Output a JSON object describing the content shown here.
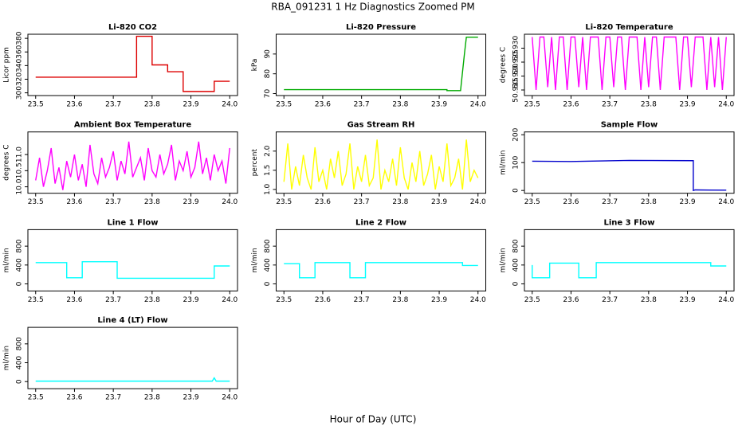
{
  "title": "RBA_091231  1 Hz Diagnostics Zoomed PM",
  "xlabel": "Hour of Day (UTC)",
  "chart_data": [
    {
      "type": "line",
      "title": "Li-820 CO2",
      "ylabel": "Licor ppm",
      "color": "#dd0000",
      "x": [
        23.5,
        23.76,
        23.76,
        23.8,
        23.8,
        23.84,
        23.84,
        23.88,
        23.88,
        23.96,
        23.96,
        24.0
      ],
      "values": [
        323,
        323,
        383,
        383,
        341,
        341,
        331,
        331,
        302,
        302,
        317,
        317
      ],
      "xlim": [
        23.48,
        24.02
      ],
      "ylim": [
        296,
        386
      ],
      "xticks": [
        23.5,
        23.6,
        23.7,
        23.8,
        23.9,
        {
          "value": 24,
          "label": "24.0"
        }
      ],
      "yticks": [
        300,
        320,
        340,
        360,
        380
      ]
    },
    {
      "type": "line",
      "title": "Li-820 Pressure",
      "ylabel": "kPa",
      "color": "#00aa00",
      "x": [
        23.5,
        23.92,
        23.92,
        23.955,
        23.965,
        23.97,
        24.0
      ],
      "values": [
        72,
        72,
        71.5,
        71.5,
        90,
        98.5,
        98.5
      ],
      "xlim": [
        23.48,
        24.02
      ],
      "ylim": [
        69,
        100
      ],
      "xticks": [
        23.5,
        23.6,
        23.7,
        23.8,
        23.9,
        {
          "value": 24,
          "label": "24.0"
        }
      ],
      "yticks": [
        70,
        80,
        90
      ]
    },
    {
      "type": "line",
      "title": "Li-820 Temperature",
      "ylabel": "degrees C",
      "color": "#ff00ff",
      "x": [
        23.5,
        23.51,
        23.52,
        23.53,
        23.54,
        23.55,
        23.56,
        23.57,
        23.58,
        23.59,
        23.6,
        23.61,
        23.62,
        23.63,
        23.64,
        23.65,
        23.66,
        23.67,
        23.68,
        23.69,
        23.7,
        23.71,
        23.72,
        23.73,
        23.74,
        23.75,
        23.76,
        23.77,
        23.78,
        23.79,
        23.8,
        23.81,
        23.82,
        23.83,
        23.84,
        23.85,
        23.86,
        23.87,
        23.88,
        23.89,
        23.9,
        23.91,
        23.92,
        23.93,
        23.94,
        23.95,
        23.96,
        23.97,
        23.98,
        23.99,
        24.0
      ],
      "values": [
        50.934,
        50.915,
        50.934,
        50.934,
        50.916,
        50.934,
        50.915,
        50.934,
        50.934,
        50.915,
        50.934,
        50.934,
        50.916,
        50.934,
        50.915,
        50.934,
        50.934,
        50.934,
        50.915,
        50.934,
        50.934,
        50.916,
        50.934,
        50.934,
        50.915,
        50.934,
        50.934,
        50.934,
        50.915,
        50.934,
        50.916,
        50.934,
        50.934,
        50.915,
        50.934,
        50.934,
        50.934,
        50.934,
        50.915,
        50.934,
        50.934,
        50.916,
        50.934,
        50.934,
        50.934,
        50.915,
        50.934,
        50.916,
        50.934,
        50.915,
        50.934
      ],
      "xlim": [
        23.48,
        24.02
      ],
      "ylim": [
        50.913,
        50.935
      ],
      "xticks": [
        23.5,
        23.6,
        23.7,
        23.8,
        23.9,
        {
          "value": 24,
          "label": "24.0"
        }
      ],
      "yticks": [
        50.915,
        {
          "value": 50.92,
          "label": "50.920"
        },
        50.925,
        {
          "value": 50.93,
          "label": "50.930"
        }
      ]
    },
    {
      "type": "line",
      "title": "Ambient Box Temperature",
      "ylabel": "degrees C",
      "color": "#ff00ff",
      "x": [
        23.5,
        23.51,
        23.52,
        23.53,
        23.54,
        23.55,
        23.56,
        23.57,
        23.58,
        23.59,
        23.6,
        23.61,
        23.62,
        23.63,
        23.64,
        23.65,
        23.66,
        23.67,
        23.68,
        23.69,
        23.7,
        23.71,
        23.72,
        23.73,
        23.74,
        23.75,
        23.76,
        23.77,
        23.78,
        23.79,
        23.8,
        23.81,
        23.82,
        23.83,
        23.84,
        23.85,
        23.86,
        23.87,
        23.88,
        23.89,
        23.9,
        23.91,
        23.92,
        23.93,
        23.94,
        23.95,
        23.96,
        23.97,
        23.98,
        23.99,
        24.0
      ],
      "values": [
        10.2,
        10.9,
        10.0,
        10.5,
        11.2,
        10.1,
        10.6,
        9.9,
        10.8,
        10.3,
        11.0,
        10.2,
        10.7,
        10.0,
        11.3,
        10.4,
        10.1,
        10.9,
        10.3,
        10.6,
        11.1,
        10.2,
        10.8,
        10.4,
        11.4,
        10.3,
        10.6,
        10.9,
        10.2,
        11.2,
        10.5,
        10.3,
        11.0,
        10.4,
        10.7,
        11.3,
        10.2,
        10.8,
        10.5,
        11.1,
        10.3,
        10.6,
        11.4,
        10.4,
        10.9,
        10.2,
        11.0,
        10.5,
        10.8,
        10.1,
        11.2
      ],
      "xlim": [
        23.48,
        24.02
      ],
      "ylim": [
        9.8,
        11.7
      ],
      "xticks": [
        23.5,
        23.6,
        23.7,
        23.8,
        23.9,
        {
          "value": 24,
          "label": "24.0"
        }
      ],
      "yticks": [
        {
          "value": 10,
          "label": "10.0"
        },
        10.5,
        {
          "value": 11,
          "label": "11.0"
        }
      ]
    },
    {
      "type": "line",
      "title": "Gas Stream RH",
      "ylabel": "percent",
      "color": "#ffff00",
      "x": [
        23.5,
        23.51,
        23.52,
        23.53,
        23.54,
        23.55,
        23.56,
        23.57,
        23.58,
        23.59,
        23.6,
        23.61,
        23.62,
        23.63,
        23.64,
        23.65,
        23.66,
        23.67,
        23.68,
        23.69,
        23.7,
        23.71,
        23.72,
        23.73,
        23.74,
        23.75,
        23.76,
        23.77,
        23.78,
        23.79,
        23.8,
        23.81,
        23.82,
        23.83,
        23.84,
        23.85,
        23.86,
        23.87,
        23.88,
        23.89,
        23.9,
        23.91,
        23.92,
        23.93,
        23.94,
        23.95,
        23.96,
        23.97,
        23.98,
        23.99,
        24.0
      ],
      "values": [
        1.2,
        2.2,
        1.0,
        1.6,
        1.1,
        1.9,
        1.3,
        1.0,
        2.1,
        1.2,
        1.5,
        1.0,
        1.8,
        1.3,
        2.0,
        1.1,
        1.4,
        2.2,
        1.0,
        1.6,
        1.2,
        1.9,
        1.1,
        1.3,
        2.3,
        1.0,
        1.5,
        1.2,
        1.8,
        1.1,
        2.1,
        1.3,
        1.0,
        1.7,
        1.2,
        2.0,
        1.1,
        1.4,
        1.9,
        1.0,
        1.6,
        1.2,
        2.2,
        1.1,
        1.3,
        1.8,
        1.0,
        2.3,
        1.2,
        1.5,
        1.3
      ],
      "xlim": [
        23.48,
        24.02
      ],
      "ylim": [
        0.9,
        2.5
      ],
      "xticks": [
        23.5,
        23.6,
        23.7,
        23.8,
        23.9,
        {
          "value": 24,
          "label": "24.0"
        }
      ],
      "yticks": [
        {
          "value": 1,
          "label": "1.0"
        },
        1.5,
        {
          "value": 2,
          "label": "2.0"
        }
      ]
    },
    {
      "type": "line",
      "title": "Sample Flow",
      "ylabel": "ml/min",
      "color": "#0000cc",
      "x": [
        23.5,
        23.6,
        23.75,
        23.915,
        23.915,
        23.92,
        24.0
      ],
      "values": [
        105,
        104,
        108,
        107,
        0,
        2,
        1
      ],
      "xlim": [
        23.48,
        24.02
      ],
      "ylim": [
        -10,
        210
      ],
      "xticks": [
        23.5,
        23.6,
        23.7,
        23.8,
        23.9,
        {
          "value": 24,
          "label": "24.0"
        }
      ],
      "yticks": [
        0,
        100,
        200
      ]
    },
    {
      "type": "line",
      "title": "Line 1 Flow",
      "ylabel": "ml/min",
      "color": "#00ffff",
      "x": [
        23.5,
        23.58,
        23.58,
        23.62,
        23.62,
        23.71,
        23.71,
        23.96,
        23.96,
        24.0
      ],
      "values": [
        450,
        450,
        130,
        130,
        470,
        470,
        120,
        120,
        380,
        380
      ],
      "xlim": [
        23.48,
        24.02
      ],
      "ylim": [
        -150,
        1150
      ],
      "xticks": [
        23.5,
        23.6,
        23.7,
        23.8,
        23.9,
        {
          "value": 24,
          "label": "24.0"
        }
      ],
      "yticks": [
        0,
        400,
        800
      ]
    },
    {
      "type": "line",
      "title": "Line 2 Flow",
      "ylabel": "ml/min",
      "color": "#00ffff",
      "x": [
        23.5,
        23.54,
        23.54,
        23.58,
        23.58,
        23.67,
        23.67,
        23.71,
        23.71,
        23.96,
        23.96,
        24.0
      ],
      "values": [
        430,
        430,
        130,
        130,
        450,
        450,
        130,
        130,
        450,
        450,
        390,
        390
      ],
      "xlim": [
        23.48,
        24.02
      ],
      "ylim": [
        -150,
        1150
      ],
      "xticks": [
        23.5,
        23.6,
        23.7,
        23.8,
        23.9,
        {
          "value": 24,
          "label": "24.0"
        }
      ],
      "yticks": [
        0,
        400,
        800
      ]
    },
    {
      "type": "line",
      "title": "Line 3 Flow",
      "ylabel": "ml/min",
      "color": "#00ffff",
      "x": [
        23.5,
        23.5,
        23.505,
        23.545,
        23.545,
        23.62,
        23.62,
        23.665,
        23.665,
        23.96,
        23.96,
        24.0
      ],
      "values": [
        400,
        130,
        130,
        130,
        440,
        440,
        130,
        130,
        450,
        450,
        380,
        380
      ],
      "xlim": [
        23.48,
        24.02
      ],
      "ylim": [
        -150,
        1150
      ],
      "xticks": [
        23.5,
        23.6,
        23.7,
        23.8,
        23.9,
        {
          "value": 24,
          "label": "24.0"
        }
      ],
      "yticks": [
        0,
        400,
        800
      ]
    },
    {
      "type": "line",
      "title": "Line 4 (LT) Flow",
      "ylabel": "ml/min",
      "color": "#00ffff",
      "x": [
        23.5,
        23.955,
        23.96,
        23.965,
        24.0
      ],
      "values": [
        10,
        10,
        80,
        10,
        10
      ],
      "xlim": [
        23.48,
        24.02
      ],
      "ylim": [
        -150,
        1150
      ],
      "xticks": [
        23.5,
        23.6,
        23.7,
        23.8,
        23.9,
        {
          "value": 24,
          "label": "24.0"
        }
      ],
      "yticks": [
        0,
        400,
        800
      ]
    }
  ]
}
